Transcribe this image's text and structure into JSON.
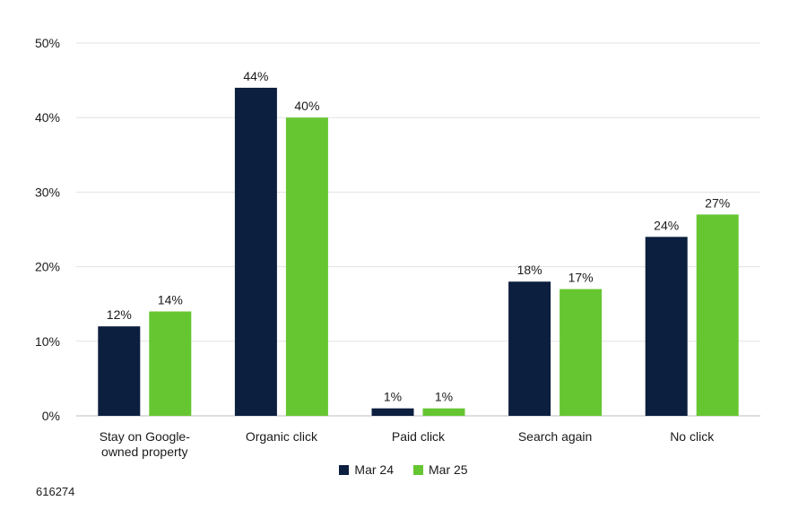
{
  "chart_data": {
    "type": "bar",
    "categories": [
      "Stay on Google-owned property",
      "Organic click",
      "Paid click",
      "Search again",
      "No click"
    ],
    "category_lines": [
      [
        "Stay on Google-",
        "owned property"
      ],
      [
        "Organic click"
      ],
      [
        "Paid click"
      ],
      [
        "Search again"
      ],
      [
        "No click"
      ]
    ],
    "series": [
      {
        "name": "Mar 24",
        "color": "#0c1f3f",
        "values": [
          12,
          44,
          1,
          18,
          24
        ],
        "labels": [
          "12%",
          "44%",
          "1%",
          "18%",
          "24%"
        ]
      },
      {
        "name": "Mar 25",
        "color": "#66c632",
        "values": [
          14,
          40,
          1,
          17,
          27
        ],
        "labels": [
          "14%",
          "40%",
          "1%",
          "17%",
          "27%"
        ]
      }
    ],
    "ylim": [
      0,
      50
    ],
    "yticks": [
      0,
      10,
      20,
      30,
      40,
      50
    ],
    "ytick_labels": [
      "0%",
      "10%",
      "20%",
      "30%",
      "40%",
      "50%"
    ],
    "grid": true,
    "legend_position": "bottom-center",
    "title": "",
    "xlabel": "",
    "ylabel": ""
  },
  "footer": {
    "chart_id": "616274"
  }
}
